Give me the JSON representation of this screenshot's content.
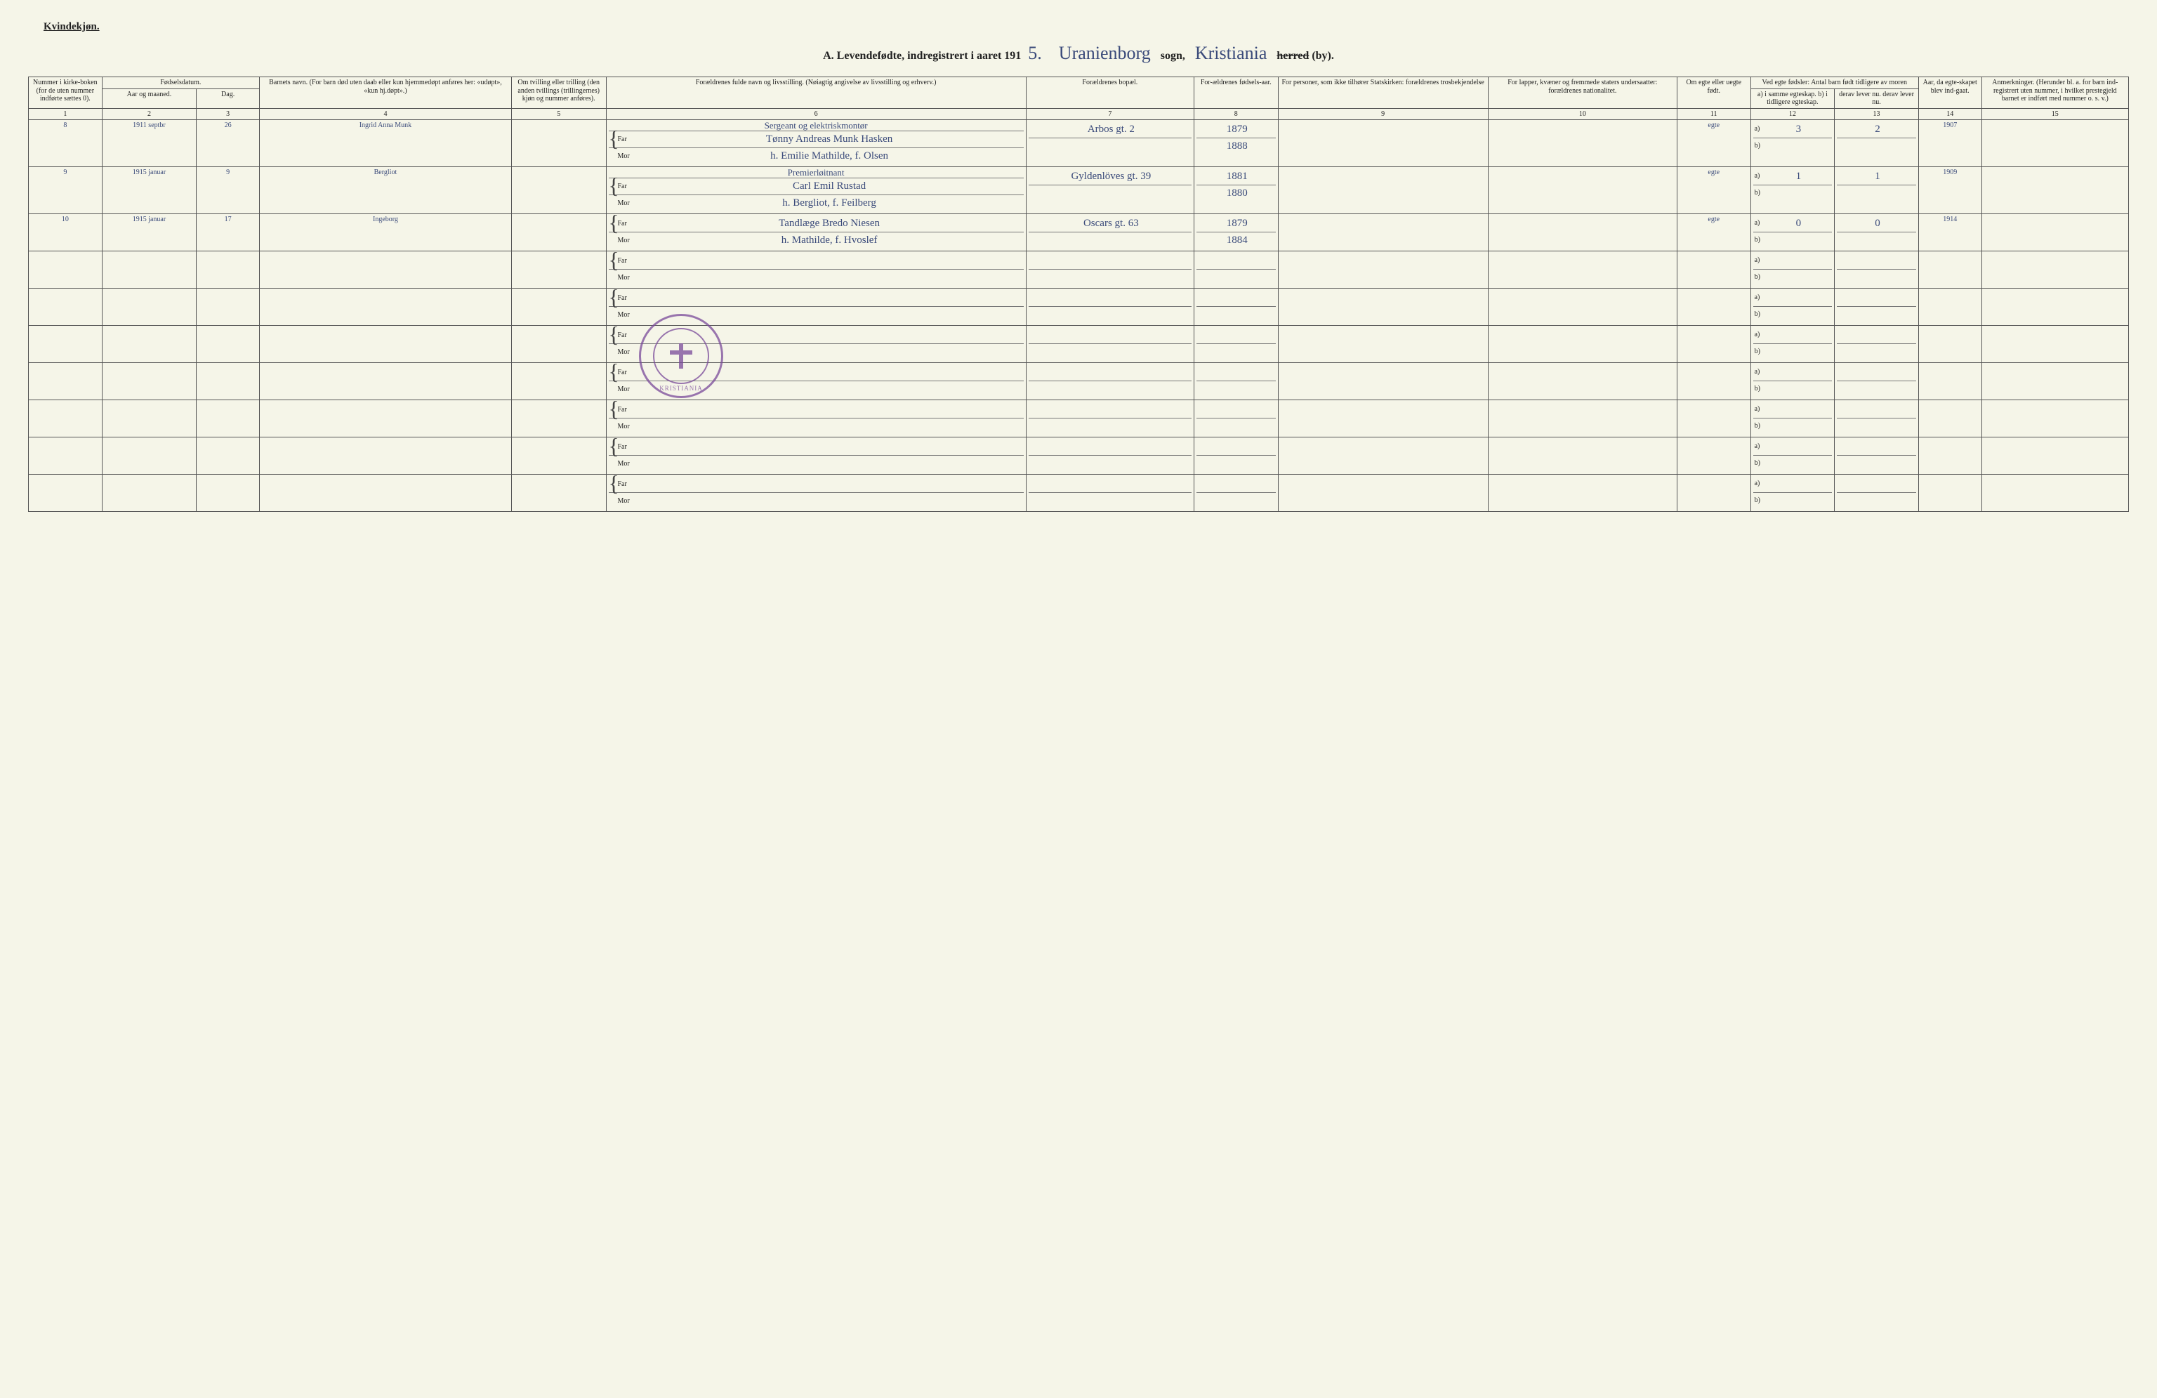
{
  "header": {
    "gender_label": "Kvindekjøn.",
    "section_letter": "A.",
    "title_prefix": "Levendefødte, indregistrert i aaret 191",
    "year_suffix": "5.",
    "sogn_cursive": "Uranienborg",
    "sogn_label": "sogn,",
    "by_cursive": "Kristiania",
    "herred_strike": "herred",
    "by_label": "(by)."
  },
  "columns": {
    "c1": "Nummer i kirke-boken (for de uten nummer indførte sættes 0).",
    "c2_group": "Fødselsdatum.",
    "c2a": "Aar og maaned.",
    "c2b": "Dag.",
    "c4": "Barnets navn.\n(For barn død uten daab eller kun hjemmedøpt anføres her: «udøpt», «kun hj.døpt».)",
    "c5": "Om tvilling eller trilling (den anden tvillings (trillingernes) kjøn og nummer anføres).",
    "c6": "Forældrenes fulde navn og livsstilling.\n(Nøiagtig angivelse av livsstilling og erhverv.)",
    "c7": "Forældrenes bopæl.",
    "c8": "For-ældrenes fødsels-aar.",
    "c9": "For personer, som ikke tilhører Statskirken: forældrenes trosbekjendelse",
    "c10": "For lapper, kvæner og fremmede staters undersaatter: forældrenes nationalitet.",
    "c11": "Om egte eller uegte født.",
    "c12_group": "Ved egte fødsler:\nAntal barn født tidligere av moren",
    "c12a": "a) i samme egteskap.\nb) i tidligere egteskap.",
    "c12b": "derav lever nu.\nderav lever nu.",
    "c14": "Aar, da egte-skapet blev ind-gaat.",
    "c15": "Anmerkninger.\n(Herunder bl. a. for barn ind-registrert uten nummer, i hvilket prestegjeld barnet er indført med nummer o. s. v.)"
  },
  "colnums": [
    "1",
    "2",
    "3",
    "4",
    "5",
    "6",
    "7",
    "8",
    "9",
    "10",
    "11",
    "12",
    "13",
    "14",
    "15"
  ],
  "parent_labels": {
    "far": "Far",
    "mor": "Mor"
  },
  "ab_labels": {
    "a": "a)",
    "b": "b)"
  },
  "rows": [
    {
      "num": "8",
      "year_month": "1911 septbr",
      "day": "26",
      "child": "Ingrid Anna Munk",
      "twin": "",
      "occupation": "Sergeant og elektriskmontør",
      "far": "Tønny Andreas Munk Hasken",
      "mor": "h. Emilie Mathilde, f. Olsen",
      "bopel_far": "Arbos gt. 2",
      "bopel_mor": "",
      "faar_far": "1879",
      "faar_mor": "1888",
      "tros": "",
      "nat": "",
      "egte": "egte",
      "a_val": "3",
      "b_val": "",
      "derav_a": "2",
      "derav_b": "",
      "egte_aar": "1907",
      "anm": ""
    },
    {
      "num": "9",
      "year_month": "1915 januar",
      "day": "9",
      "child": "Bergliot",
      "twin": "",
      "occupation": "Premierløitnant",
      "far": "Carl Emil Rustad",
      "mor": "h. Bergliot, f. Feilberg",
      "bopel_far": "Gyldenlöves gt. 39",
      "bopel_mor": "",
      "faar_far": "1881",
      "faar_mor": "1880",
      "tros": "",
      "nat": "",
      "egte": "egte",
      "a_val": "1",
      "b_val": "",
      "derav_a": "1",
      "derav_b": "",
      "egte_aar": "1909",
      "anm": ""
    },
    {
      "num": "10",
      "year_month": "1915 januar",
      "day": "17",
      "child": "Ingeborg",
      "twin": "",
      "occupation": "",
      "far": "Tandlæge Bredo Niesen",
      "mor": "h. Mathilde, f. Hvoslef",
      "bopel_far": "Oscars gt. 63",
      "bopel_mor": "",
      "faar_far": "1879",
      "faar_mor": "1884",
      "tros": "",
      "nat": "",
      "egte": "egte",
      "a_val": "0",
      "b_val": "",
      "derav_a": "0",
      "derav_b": "",
      "egte_aar": "1914",
      "anm": ""
    },
    {
      "num": "",
      "year_month": "",
      "day": "",
      "child": "",
      "twin": "",
      "occupation": "",
      "far": "",
      "mor": "",
      "bopel_far": "",
      "bopel_mor": "",
      "faar_far": "",
      "faar_mor": "",
      "tros": "",
      "nat": "",
      "egte": "",
      "a_val": "",
      "b_val": "",
      "derav_a": "",
      "derav_b": "",
      "egte_aar": "",
      "anm": ""
    },
    {
      "num": "",
      "year_month": "",
      "day": "",
      "child": "",
      "twin": "",
      "occupation": "",
      "far": "",
      "mor": "",
      "bopel_far": "",
      "bopel_mor": "",
      "faar_far": "",
      "faar_mor": "",
      "tros": "",
      "nat": "",
      "egte": "",
      "a_val": "",
      "b_val": "",
      "derav_a": "",
      "derav_b": "",
      "egte_aar": "",
      "anm": ""
    },
    {
      "num": "",
      "year_month": "",
      "day": "",
      "child": "",
      "twin": "",
      "occupation": "",
      "far": "",
      "mor": "",
      "bopel_far": "",
      "bopel_mor": "",
      "faar_far": "",
      "faar_mor": "",
      "tros": "",
      "nat": "",
      "egte": "",
      "a_val": "",
      "b_val": "",
      "derav_a": "",
      "derav_b": "",
      "egte_aar": "",
      "anm": ""
    },
    {
      "num": "",
      "year_month": "",
      "day": "",
      "child": "",
      "twin": "",
      "occupation": "",
      "far": "",
      "mor": "",
      "bopel_far": "",
      "bopel_mor": "",
      "faar_far": "",
      "faar_mor": "",
      "tros": "",
      "nat": "",
      "egte": "",
      "a_val": "",
      "b_val": "",
      "derav_a": "",
      "derav_b": "",
      "egte_aar": "",
      "anm": ""
    },
    {
      "num": "",
      "year_month": "",
      "day": "",
      "child": "",
      "twin": "",
      "occupation": "",
      "far": "",
      "mor": "",
      "bopel_far": "",
      "bopel_mor": "",
      "faar_far": "",
      "faar_mor": "",
      "tros": "",
      "nat": "",
      "egte": "",
      "a_val": "",
      "b_val": "",
      "derav_a": "",
      "derav_b": "",
      "egte_aar": "",
      "anm": ""
    },
    {
      "num": "",
      "year_month": "",
      "day": "",
      "child": "",
      "twin": "",
      "occupation": "",
      "far": "",
      "mor": "",
      "bopel_far": "",
      "bopel_mor": "",
      "faar_far": "",
      "faar_mor": "",
      "tros": "",
      "nat": "",
      "egte": "",
      "a_val": "",
      "b_val": "",
      "derav_a": "",
      "derav_b": "",
      "egte_aar": "",
      "anm": ""
    },
    {
      "num": "",
      "year_month": "",
      "day": "",
      "child": "",
      "twin": "",
      "occupation": "",
      "far": "",
      "mor": "",
      "bopel_far": "",
      "bopel_mor": "",
      "faar_far": "",
      "faar_mor": "",
      "tros": "",
      "nat": "",
      "egte": "",
      "a_val": "",
      "b_val": "",
      "derav_a": "",
      "derav_b": "",
      "egte_aar": "",
      "anm": ""
    }
  ],
  "stamp": {
    "text": "KRISTIANIA"
  },
  "style": {
    "page_bg": "#f5f5e8",
    "ink": "#222222",
    "cursive_color": "#3a4a7a",
    "stamp_color": "#7a4a9a",
    "border_color": "#555555",
    "col_widths_pct": [
      3.5,
      4.5,
      3,
      12,
      4.5,
      20,
      8,
      4,
      10,
      9,
      3.5,
      4,
      4,
      3,
      7
    ]
  }
}
